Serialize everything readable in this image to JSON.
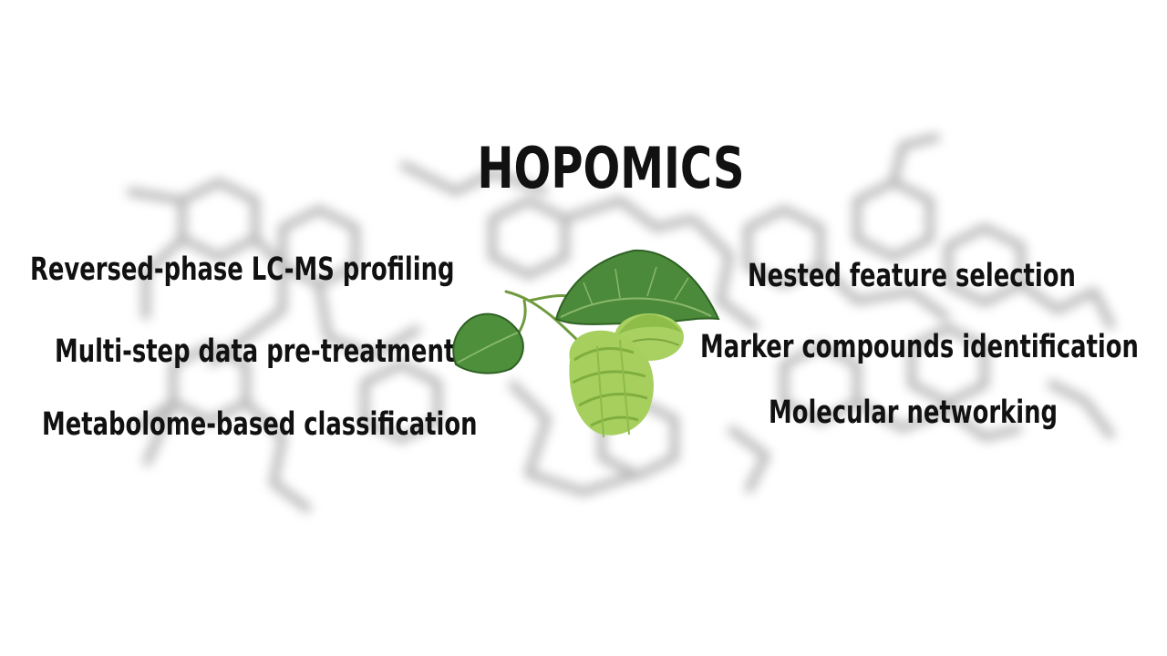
{
  "title": "HOPOMICS",
  "left_items": [
    "Reversed-phase LC-MS profiling",
    "Multi-step data pre-treatment",
    "Metabolome-based classification"
  ],
  "right_items": [
    "Nested feature selection",
    "Marker compounds identification",
    "Molecular networking"
  ],
  "colors": {
    "text": "#111111",
    "leaf": "#4e8a3c",
    "cone": "#9cc85a",
    "molecule": "#888888"
  },
  "image": "hop-plant-illustration"
}
